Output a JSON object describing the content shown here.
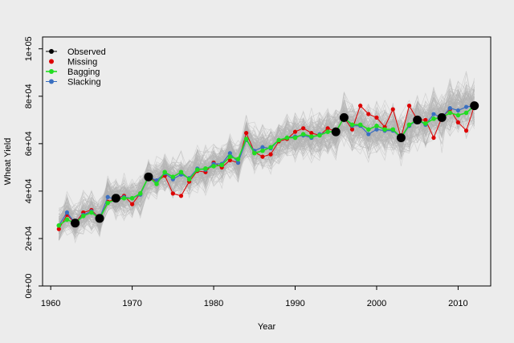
{
  "chart_data": {
    "type": "line",
    "xlabel": "Year",
    "ylabel": "Wheat Yield",
    "xlim": [
      1959,
      2014
    ],
    "ylim": [
      0,
      105000
    ],
    "x_ticks": [
      1960,
      1970,
      1980,
      1990,
      2000,
      2010
    ],
    "x_tick_labels": [
      "1960",
      "1970",
      "1980",
      "1990",
      "2000",
      "2010"
    ],
    "y_ticks": [
      0,
      20000,
      40000,
      60000,
      80000,
      100000
    ],
    "y_tick_labels": [
      "0e+00",
      "2e+04",
      "4e+04",
      "6e+04",
      "8e+04",
      "1e+05"
    ],
    "grid": false,
    "legend_position": "top-left",
    "legend": [
      {
        "label": "Observed",
        "color": "#000000"
      },
      {
        "label": "Missing",
        "color": "#dd0000"
      },
      {
        "label": "Bagging",
        "color": "#22dd22"
      },
      {
        "label": "Slacking",
        "color": "#3a6fc0"
      }
    ],
    "background_series": {
      "description_color": "#b4b4b4"
    },
    "years": [
      1961,
      1962,
      1963,
      1964,
      1965,
      1966,
      1967,
      1968,
      1969,
      1970,
      1971,
      1972,
      1973,
      1974,
      1975,
      1976,
      1977,
      1978,
      1979,
      1980,
      1981,
      1982,
      1983,
      1984,
      1985,
      1986,
      1987,
      1988,
      1989,
      1990,
      1991,
      1992,
      1993,
      1994,
      1995,
      1996,
      1997,
      1998,
      1999,
      2000,
      2001,
      2002,
      2003,
      2004,
      2005,
      2006,
      2007,
      2008,
      2009,
      2010,
      2011,
      2012
    ],
    "series": [
      {
        "name": "Missing",
        "color": "#dd0000",
        "values": [
          24000,
          30000,
          26500,
          31000,
          32000,
          28500,
          35500,
          37000,
          38000,
          34500,
          39000,
          46000,
          44000,
          46500,
          39000,
          38000,
          44000,
          48500,
          48000,
          52000,
          50000,
          53000,
          52000,
          64500,
          56500,
          54500,
          55500,
          61000,
          62000,
          65000,
          66500,
          64500,
          63500,
          66500,
          65000,
          71000,
          66000,
          76000,
          72500,
          71000,
          67000,
          74500,
          62500,
          76000,
          70000,
          70000,
          62500,
          71000,
          74500,
          69000,
          65500,
          76000
        ]
      },
      {
        "name": "Bagging",
        "color": "#22dd22",
        "values": [
          25500,
          28000,
          26500,
          29500,
          31000,
          28500,
          35000,
          36500,
          37000,
          37000,
          39000,
          46000,
          43000,
          48000,
          46000,
          48000,
          45000,
          49000,
          49500,
          50500,
          51000,
          54500,
          53500,
          62000,
          56000,
          57000,
          58500,
          61500,
          62500,
          62500,
          64000,
          63000,
          63500,
          65000,
          65000,
          71000,
          68000,
          68000,
          66000,
          67500,
          66000,
          66000,
          62500,
          68000,
          70000,
          68500,
          70500,
          71000,
          73000,
          72000,
          73000,
          76000
        ]
      },
      {
        "name": "Slacking",
        "color": "#3a6fc0",
        "values": [
          25500,
          31000,
          26500,
          30000,
          31500,
          28500,
          37500,
          36500,
          37500,
          37000,
          38500,
          46000,
          44500,
          47500,
          45000,
          47000,
          45500,
          49500,
          49000,
          51500,
          51500,
          56000,
          52000,
          61500,
          57000,
          58500,
          58000,
          61500,
          62500,
          63000,
          63500,
          62500,
          64000,
          65000,
          65000,
          71000,
          67500,
          67500,
          64000,
          66000,
          65500,
          65500,
          62500,
          67500,
          70000,
          68000,
          72500,
          71000,
          75000,
          74000,
          75500,
          76000
        ]
      },
      {
        "name": "Observed",
        "color": "#000000",
        "observed_indices": [
          2,
          5,
          7,
          11,
          34,
          35,
          42,
          44,
          47,
          51
        ]
      }
    ]
  }
}
